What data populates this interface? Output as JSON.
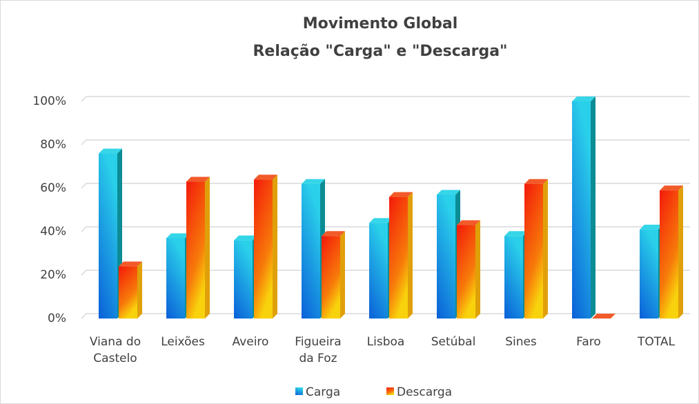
{
  "chart_data": {
    "type": "bar3d",
    "title": "Movimento Global",
    "subtitle": "Relação \"Carga\" e \"Descarga\"",
    "categories": [
      "Viana do Castelo",
      "Leixões",
      "Aveiro",
      "Figueira da Foz",
      "Lisboa",
      "Setúbal",
      "Sines",
      "Faro",
      "TOTAL"
    ],
    "series": [
      {
        "name": "Carga",
        "color": "#1ca9e0",
        "values": [
          76,
          37,
          36,
          62,
          44,
          57,
          38,
          100,
          41
        ]
      },
      {
        "name": "Descarga",
        "color": "#f2300a",
        "values": [
          24,
          63,
          64,
          38,
          56,
          43,
          62,
          0,
          59
        ]
      }
    ],
    "ylim": [
      0,
      100
    ],
    "yticks": [
      {
        "value": 0,
        "label": "0%"
      },
      {
        "value": 20,
        "label": "20%"
      },
      {
        "value": 40,
        "label": "40%"
      },
      {
        "value": 60,
        "label": "60%"
      },
      {
        "value": 80,
        "label": "80%"
      },
      {
        "value": 100,
        "label": "100%"
      }
    ],
    "grid": true
  }
}
